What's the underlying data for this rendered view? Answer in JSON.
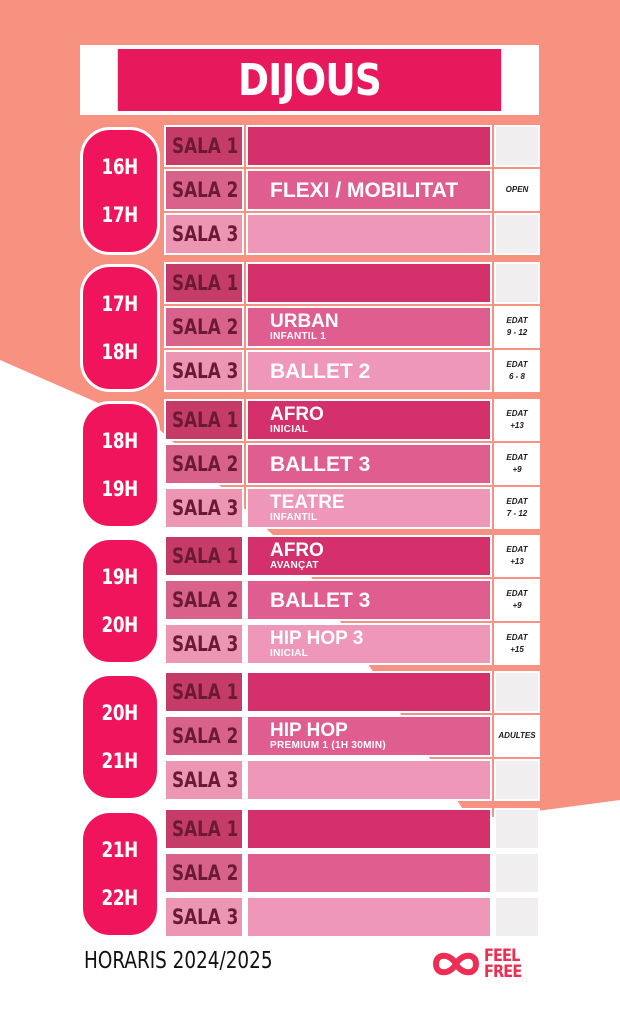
{
  "title": "DIJOUS",
  "footer": {
    "text": "HORARIS 2024/2025",
    "logo_line1": "FEEL",
    "logo_line2": "FREE"
  },
  "colors": {
    "accent": "#e8185c",
    "background_salmon": "#f79180"
  },
  "blocks": [
    {
      "start": "16H",
      "end": "17H",
      "rows": [
        {
          "sala": "SALA 1",
          "activity": "",
          "sub": "",
          "age1": "",
          "age2": ""
        },
        {
          "sala": "SALA 2",
          "activity": "FLEXI / MOBILITAT",
          "sub": "",
          "age1": "OPEN",
          "age2": ""
        },
        {
          "sala": "SALA 3",
          "activity": "",
          "sub": "",
          "age1": "",
          "age2": ""
        }
      ]
    },
    {
      "start": "17H",
      "end": "18H",
      "rows": [
        {
          "sala": "SALA 1",
          "activity": "",
          "sub": "",
          "age1": "",
          "age2": ""
        },
        {
          "sala": "SALA 2",
          "activity": "URBAN",
          "sub": "INFANTIL 1",
          "age1": "EDAT",
          "age2": "9 - 12"
        },
        {
          "sala": "SALA 3",
          "activity": "BALLET 2",
          "sub": "",
          "age1": "EDAT",
          "age2": "6 - 8"
        }
      ]
    },
    {
      "start": "18H",
      "end": "19H",
      "rows": [
        {
          "sala": "SALA 1",
          "activity": "AFRO",
          "sub": "INICIAL",
          "age1": "EDAT",
          "age2": "+13"
        },
        {
          "sala": "SALA 2",
          "activity": "BALLET 3",
          "sub": "",
          "age1": "EDAT",
          "age2": "+9"
        },
        {
          "sala": "SALA 3",
          "activity": "TEATRE",
          "sub": "INFANTIL",
          "age1": "EDAT",
          "age2": "7 - 12"
        }
      ]
    },
    {
      "start": "19H",
      "end": "20H",
      "rows": [
        {
          "sala": "SALA 1",
          "activity": "AFRO",
          "sub": "AVANÇAT",
          "age1": "EDAT",
          "age2": "+13"
        },
        {
          "sala": "SALA 2",
          "activity": "BALLET 3",
          "sub": "",
          "age1": "EDAT",
          "age2": "+9"
        },
        {
          "sala": "SALA 3",
          "activity": "HIP HOP 3",
          "sub": "INICIAL",
          "age1": "EDAT",
          "age2": "+15"
        }
      ]
    },
    {
      "start": "20H",
      "end": "21H",
      "rows": [
        {
          "sala": "SALA 1",
          "activity": "",
          "sub": "",
          "age1": "",
          "age2": ""
        },
        {
          "sala": "SALA 2",
          "activity": "HIP HOP",
          "sub": "PREMIUM 1 (1H 30MIN)",
          "age1": "ADULTES",
          "age2": ""
        },
        {
          "sala": "SALA 3",
          "activity": "",
          "sub": "",
          "age1": "",
          "age2": ""
        }
      ]
    },
    {
      "start": "21H",
      "end": "22H",
      "rows": [
        {
          "sala": "SALA 1",
          "activity": "",
          "sub": "",
          "age1": "",
          "age2": ""
        },
        {
          "sala": "SALA 2",
          "activity": "",
          "sub": "",
          "age1": "",
          "age2": ""
        },
        {
          "sala": "SALA 3",
          "activity": "",
          "sub": "",
          "age1": "",
          "age2": ""
        }
      ]
    }
  ]
}
